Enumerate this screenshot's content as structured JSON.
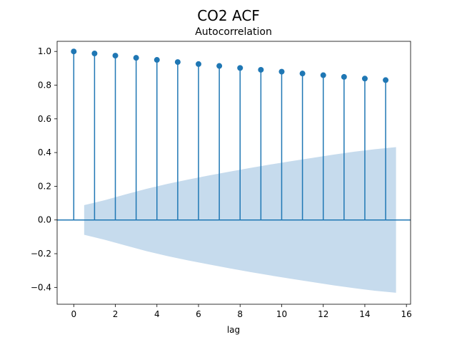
{
  "figure": {
    "suptitle": "CO2 ACF"
  },
  "chart_data": {
    "type": "stem",
    "title": "Autocorrelation",
    "xlabel": "lag",
    "ylabel": "",
    "xlim": [
      -0.8,
      16.2
    ],
    "ylim": [
      -0.5,
      1.06
    ],
    "xticks": [
      0,
      2,
      4,
      6,
      8,
      10,
      12,
      14,
      16
    ],
    "xtick_labels": [
      "0",
      "2",
      "4",
      "6",
      "8",
      "10",
      "12",
      "14",
      "16"
    ],
    "yticks": [
      -0.4,
      -0.2,
      0.0,
      0.2,
      0.4,
      0.6,
      0.8,
      1.0
    ],
    "ytick_labels": [
      "−0.4",
      "−0.2",
      "0.0",
      "0.2",
      "0.4",
      "0.6",
      "0.8",
      "1.0"
    ],
    "grid": false,
    "lags": [
      0,
      1,
      2,
      3,
      4,
      5,
      6,
      7,
      8,
      9,
      10,
      11,
      12,
      13,
      14,
      15
    ],
    "acf": [
      1.0,
      0.988,
      0.975,
      0.962,
      0.95,
      0.937,
      0.925,
      0.914,
      0.902,
      0.891,
      0.88,
      0.869,
      0.859,
      0.849,
      0.839,
      0.83
    ],
    "confidence_band": {
      "x": [
        0.5,
        1.5,
        2.5,
        3.5,
        4.5,
        5.5,
        6.5,
        7.5,
        8.5,
        9.5,
        10.5,
        11.5,
        12.5,
        13.5,
        14.5,
        15.5
      ],
      "upper": [
        0.088,
        0.118,
        0.152,
        0.185,
        0.214,
        0.24,
        0.264,
        0.287,
        0.309,
        0.33,
        0.35,
        0.369,
        0.388,
        0.405,
        0.42,
        0.432
      ],
      "lower": [
        -0.088,
        -0.118,
        -0.152,
        -0.185,
        -0.214,
        -0.24,
        -0.264,
        -0.287,
        -0.309,
        -0.33,
        -0.35,
        -0.369,
        -0.388,
        -0.405,
        -0.42,
        -0.432
      ]
    },
    "colors": {
      "stem": "#1f77b4",
      "marker": "#1f77b4",
      "baseline": "#1f77b4",
      "band": "#c6dbed",
      "axes": "#000000"
    }
  }
}
